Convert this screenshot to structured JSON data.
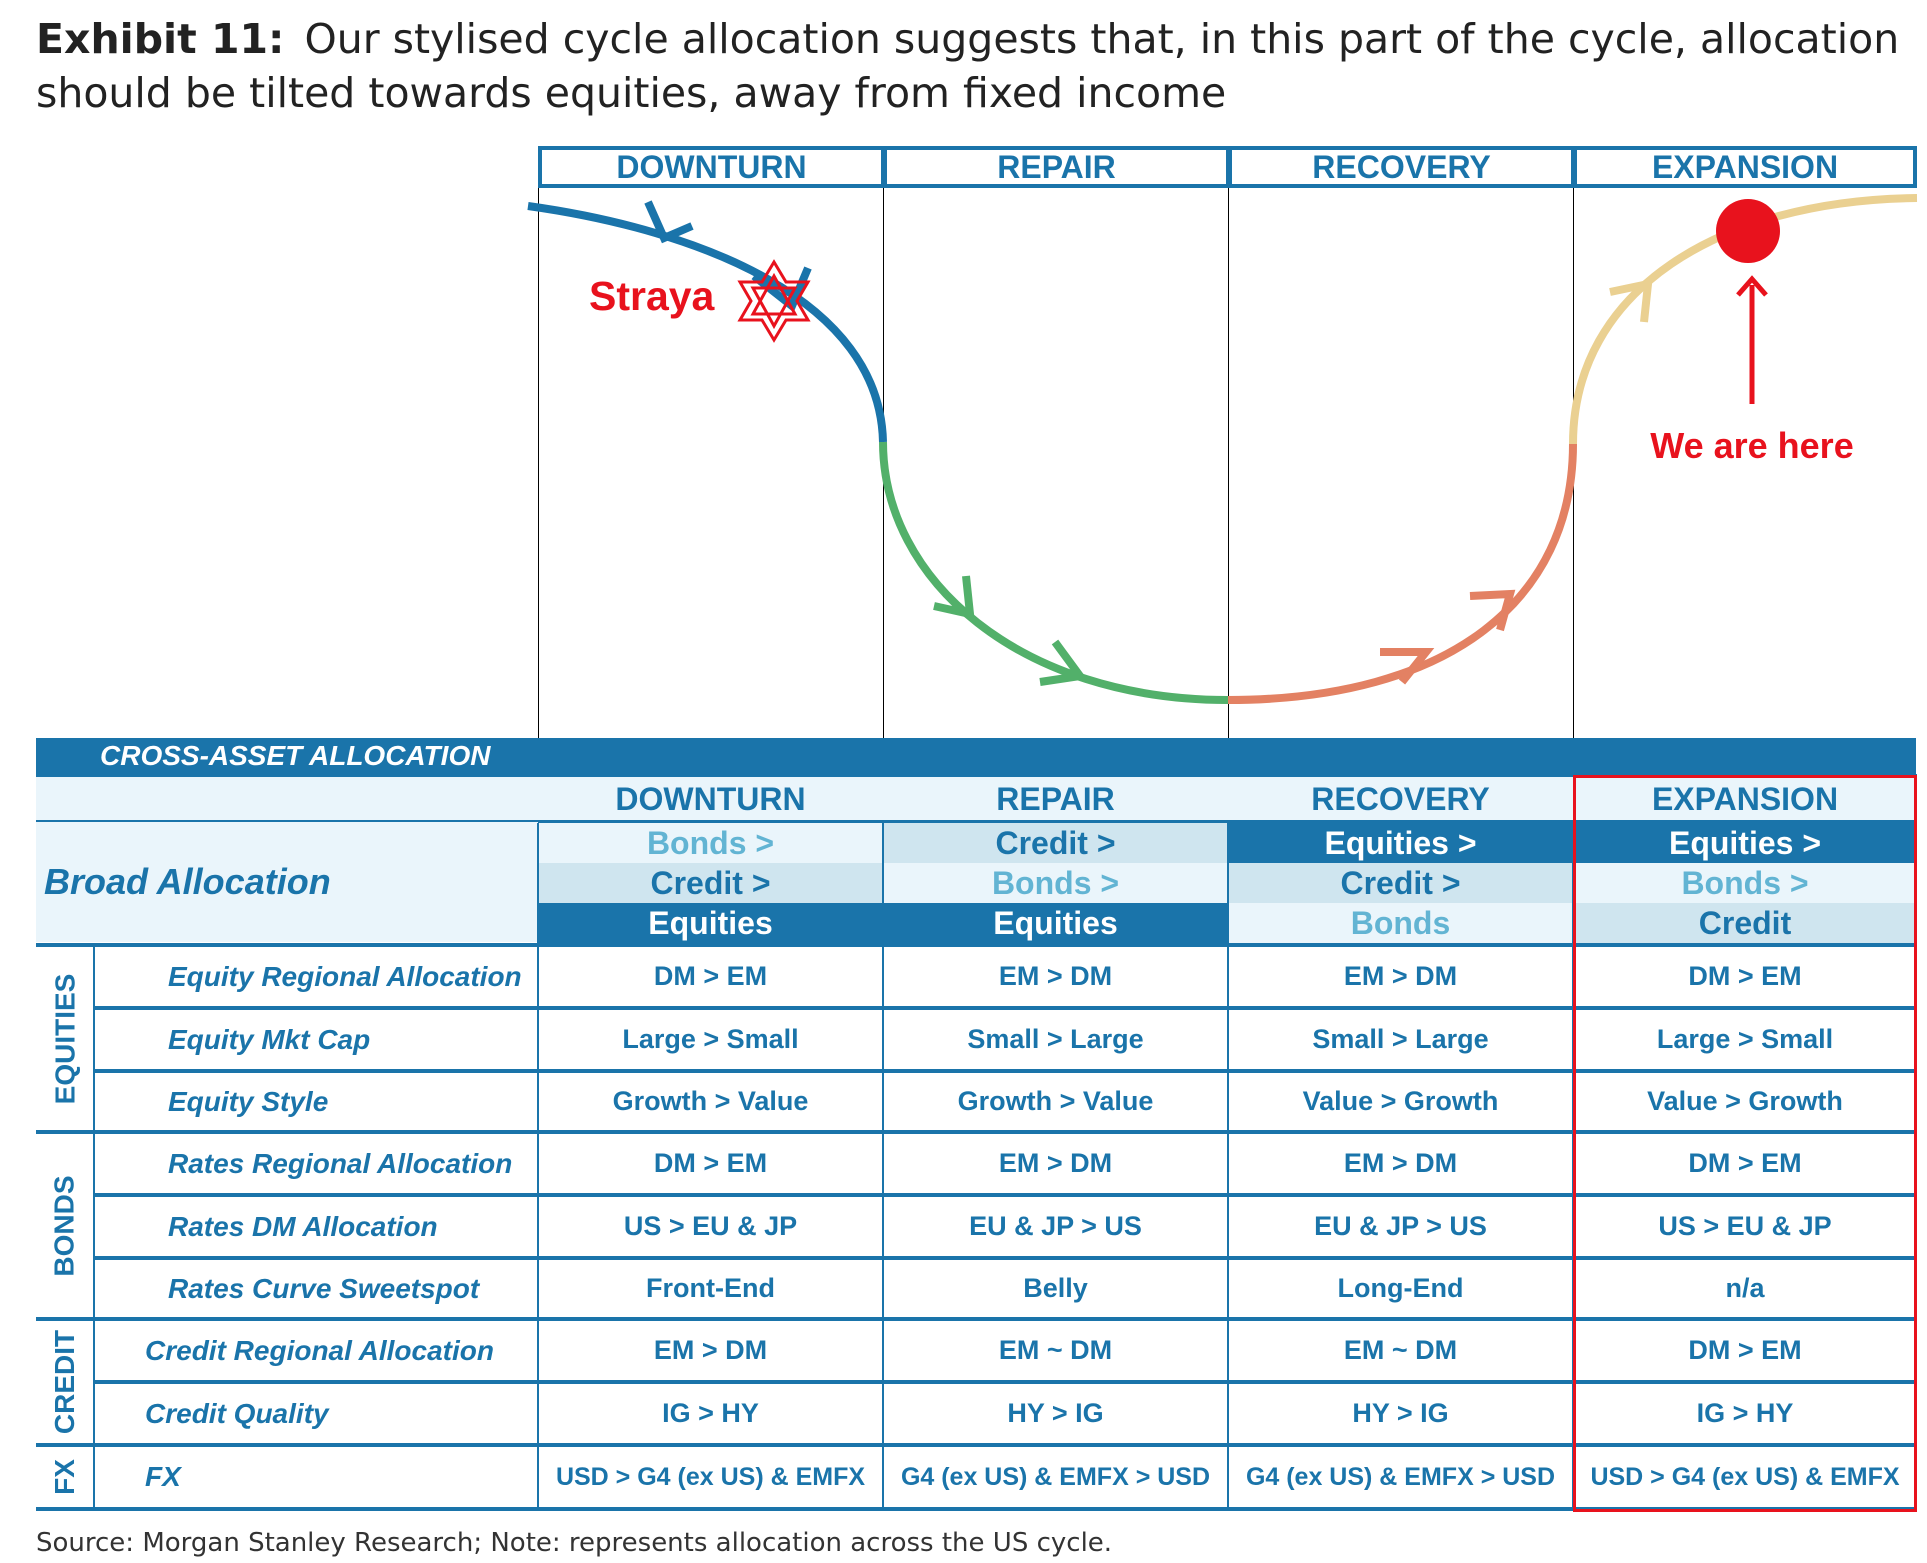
{
  "title": {
    "label": "Exhibit 11:",
    "text": "Our stylised cycle allocation suggests that, in this part of the cycle, allocation should be tilted towards equities, away from fixed income"
  },
  "phases": [
    "DOWNTURN",
    "REPAIR",
    "RECOVERY",
    "EXPANSION"
  ],
  "annotations": {
    "straya": "Straya",
    "we_are_here": "We are here"
  },
  "colors": {
    "brand_blue": "#1a74aa",
    "downturn": "#1a74aa",
    "repair": "#52b06a",
    "recovery": "#e38163",
    "expansion": "#ead091",
    "marker": "#e8121d"
  },
  "table": {
    "title": "CROSS-ASSET ALLOCATION",
    "headers": [
      "DOWNTURN",
      "REPAIR",
      "RECOVERY",
      "EXPANSION"
    ],
    "broad_allocation_label": "Broad Allocation",
    "broad_allocation": [
      [
        "Bonds >",
        "Credit >",
        "Equities >",
        "Equities >"
      ],
      [
        "Credit >",
        "Bonds >",
        "Credit >",
        "Bonds >"
      ],
      [
        "Equities",
        "Equities",
        "Bonds",
        "Credit"
      ]
    ],
    "sections": [
      "EQUITIES",
      "BONDS",
      "CREDIT",
      "FX"
    ],
    "rows": [
      {
        "label": "Equity Regional Allocation",
        "values": [
          "DM > EM",
          "EM > DM",
          "EM > DM",
          "DM > EM"
        ]
      },
      {
        "label": "Equity Mkt Cap",
        "values": [
          "Large > Small",
          "Small > Large",
          "Small > Large",
          "Large > Small"
        ]
      },
      {
        "label": "Equity Style",
        "values": [
          "Growth > Value",
          "Growth > Value",
          "Value > Growth",
          "Value > Growth"
        ]
      },
      {
        "label": "Rates Regional Allocation",
        "values": [
          "DM > EM",
          "EM > DM",
          "EM > DM",
          "DM > EM"
        ]
      },
      {
        "label": "Rates DM Allocation",
        "values": [
          "US > EU & JP",
          "EU & JP > US",
          "EU & JP > US",
          "US > EU & JP"
        ]
      },
      {
        "label": "Rates Curve Sweetspot",
        "values": [
          "Front-End",
          "Belly",
          "Long-End",
          "n/a"
        ]
      },
      {
        "label": "Credit Regional Allocation",
        "values": [
          "EM > DM",
          "EM ~ DM",
          "EM ~ DM",
          "DM > EM"
        ]
      },
      {
        "label": "Credit Quality",
        "values": [
          "IG > HY",
          "HY > IG",
          "HY > IG",
          "IG > HY"
        ]
      },
      {
        "label": "FX",
        "values": [
          "USD > G4 (ex US) & EMFX",
          "G4 (ex US) & EMFX > USD",
          "G4 (ex US) & EMFX > USD",
          "USD > G4 (ex US) & EMFX"
        ]
      }
    ]
  },
  "source": "Source: Morgan Stanley Research; Note: represents allocation across the US cycle."
}
